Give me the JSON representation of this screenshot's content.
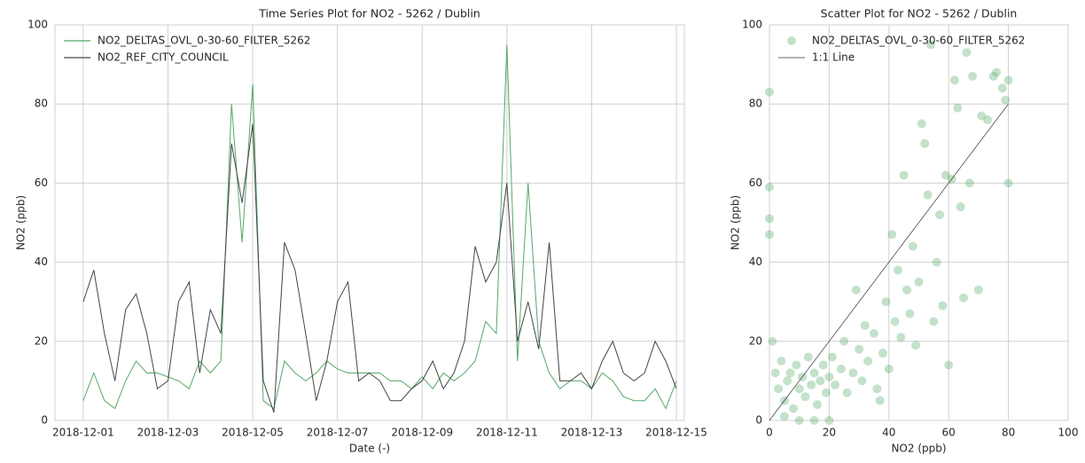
{
  "chart_data": [
    {
      "type": "line",
      "title": "Time Series Plot for NO2 - 5262 / Dublin",
      "xlabel": "Date (-)",
      "ylabel": "NO2 (ppb)",
      "x": [
        "2018-12-01 00:00",
        "2018-12-01 06:00",
        "2018-12-01 12:00",
        "2018-12-01 18:00",
        "2018-12-02 00:00",
        "2018-12-02 06:00",
        "2018-12-02 12:00",
        "2018-12-02 18:00",
        "2018-12-03 00:00",
        "2018-12-03 06:00",
        "2018-12-03 12:00",
        "2018-12-03 18:00",
        "2018-12-04 00:00",
        "2018-12-04 06:00",
        "2018-12-04 12:00",
        "2018-12-04 18:00",
        "2018-12-05 00:00",
        "2018-12-05 06:00",
        "2018-12-05 12:00",
        "2018-12-05 18:00",
        "2018-12-06 00:00",
        "2018-12-06 06:00",
        "2018-12-06 12:00",
        "2018-12-06 18:00",
        "2018-12-07 00:00",
        "2018-12-07 06:00",
        "2018-12-07 12:00",
        "2018-12-07 18:00",
        "2018-12-08 00:00",
        "2018-12-08 06:00",
        "2018-12-08 12:00",
        "2018-12-08 18:00",
        "2018-12-09 00:00",
        "2018-12-09 06:00",
        "2018-12-09 12:00",
        "2018-12-09 18:00",
        "2018-12-10 00:00",
        "2018-12-10 06:00",
        "2018-12-10 12:00",
        "2018-12-10 18:00",
        "2018-12-11 00:00",
        "2018-12-11 06:00",
        "2018-12-11 12:00",
        "2018-12-11 18:00",
        "2018-12-12 00:00",
        "2018-12-12 06:00",
        "2018-12-12 12:00",
        "2018-12-12 18:00",
        "2018-12-13 00:00",
        "2018-12-13 06:00",
        "2018-12-13 12:00",
        "2018-12-13 18:00",
        "2018-12-14 00:00",
        "2018-12-14 06:00",
        "2018-12-14 12:00",
        "2018-12-14 18:00",
        "2018-12-15 00:00"
      ],
      "series": [
        {
          "name": "NO2_DELTAS_OVL_0-30-60_FILTER_5262",
          "color": "#55a868",
          "values": [
            5,
            12,
            5,
            3,
            10,
            15,
            12,
            12,
            11,
            10,
            8,
            15,
            12,
            15,
            80,
            45,
            85,
            5,
            3,
            15,
            12,
            10,
            12,
            15,
            13,
            12,
            12,
            12,
            12,
            10,
            10,
            8,
            11,
            8,
            12,
            10,
            12,
            15,
            25,
            22,
            95,
            15,
            60,
            20,
            12,
            8,
            10,
            10,
            8,
            12,
            10,
            6,
            5,
            5,
            8,
            3,
            10
          ]
        },
        {
          "name": "NO2_REF_CITY_COUNCIL",
          "color": "#444444",
          "values": [
            30,
            38,
            22,
            10,
            28,
            32,
            22,
            8,
            10,
            30,
            35,
            12,
            28,
            22,
            70,
            55,
            75,
            10,
            2,
            45,
            38,
            22,
            5,
            15,
            30,
            35,
            10,
            12,
            10,
            5,
            5,
            8,
            10,
            15,
            8,
            12,
            20,
            44,
            35,
            40,
            60,
            20,
            30,
            18,
            45,
            10,
            10,
            12,
            8,
            15,
            20,
            12,
            10,
            12,
            20,
            15,
            8
          ]
        }
      ],
      "xlim": [
        "2018-11-30 08:00",
        "2018-12-15 04:30"
      ],
      "xticks": [
        "2018-12-01",
        "2018-12-03",
        "2018-12-05",
        "2018-12-07",
        "2018-12-09",
        "2018-12-11",
        "2018-12-13",
        "2018-12-15"
      ],
      "ylim": [
        0,
        100
      ],
      "yticks": [
        0,
        20,
        40,
        60,
        80,
        100
      ],
      "grid": true,
      "legend": "upper left"
    },
    {
      "type": "scatter",
      "title": "Scatter Plot for NO2 - 5262 / Dublin",
      "xlabel": "NO2 (ppb)",
      "ylabel": "NO2 (ppb)",
      "series": [
        {
          "name": "NO2_DELTAS_OVL_0-30-60_FILTER_5262",
          "color": "#55a868",
          "kind": "points",
          "x": [
            0,
            0,
            0,
            0,
            1,
            2,
            3,
            4,
            5,
            6,
            7,
            8,
            9,
            10,
            11,
            12,
            13,
            14,
            15,
            16,
            17,
            18,
            19,
            20,
            21,
            22,
            24,
            25,
            26,
            28,
            30,
            31,
            32,
            33,
            35,
            36,
            38,
            39,
            40,
            41,
            42,
            43,
            44,
            45,
            46,
            47,
            48,
            49,
            50,
            51,
            52,
            53,
            54,
            55,
            56,
            57,
            58,
            59,
            60,
            61,
            62,
            63,
            64,
            65,
            66,
            67,
            68,
            70,
            71,
            73,
            75,
            76,
            78,
            79,
            80,
            80,
            29,
            37,
            15,
            10,
            20,
            5
          ],
          "values": [
            83,
            59,
            51,
            47,
            20,
            12,
            8,
            15,
            5,
            10,
            12,
            3,
            14,
            8,
            11,
            6,
            16,
            9,
            12,
            4,
            10,
            14,
            7,
            11,
            16,
            9,
            13,
            20,
            7,
            12,
            18,
            10,
            24,
            15,
            22,
            8,
            17,
            30,
            13,
            47,
            25,
            38,
            21,
            62,
            33,
            27,
            44,
            19,
            35,
            75,
            70,
            57,
            95,
            25,
            40,
            52,
            29,
            62,
            14,
            61,
            86,
            79,
            54,
            31,
            93,
            60,
            87,
            33,
            77,
            76,
            87,
            88,
            84,
            81,
            86,
            60,
            33,
            5,
            0,
            0,
            0,
            1
          ]
        },
        {
          "name": "1:1 Line",
          "color": "#333333",
          "kind": "line",
          "x": [
            0,
            80
          ],
          "values": [
            0,
            80
          ]
        }
      ],
      "xlim": [
        0,
        100
      ],
      "xticks": [
        0,
        20,
        40,
        60,
        80,
        100
      ],
      "ylim": [
        0,
        100
      ],
      "yticks": [
        0,
        20,
        40,
        60,
        80,
        100
      ],
      "grid": true,
      "legend": "upper left"
    }
  ]
}
